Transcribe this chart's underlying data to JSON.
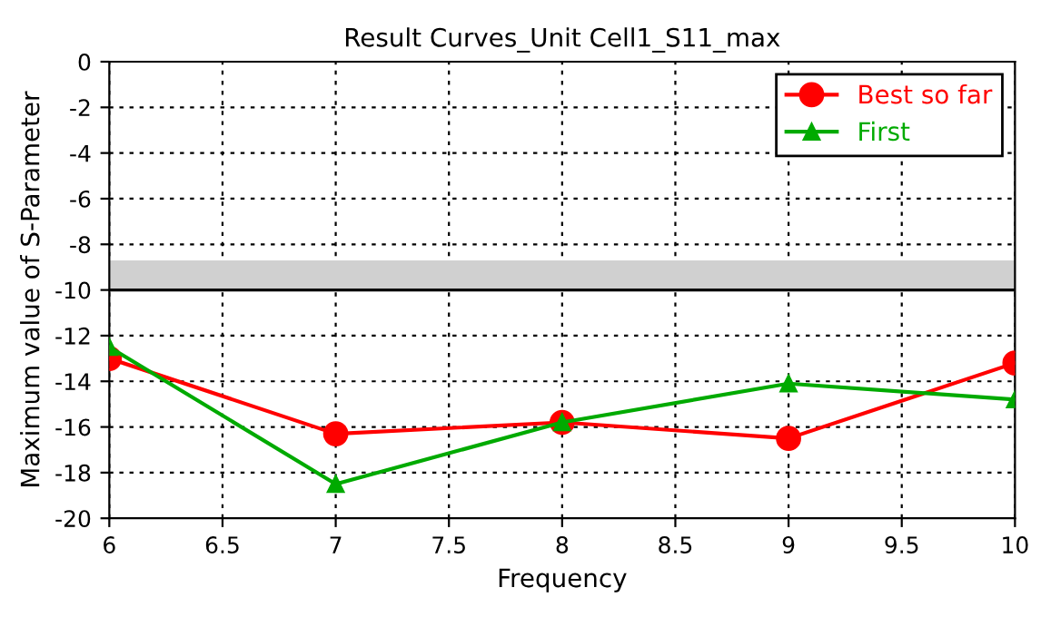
{
  "chart_data": {
    "type": "line",
    "title": "Result Curves_Unit Cell1_S11_max",
    "xlabel": "Frequency",
    "ylabel": "Maximum value of S-Parameter",
    "x": [
      6,
      7,
      8,
      9,
      10
    ],
    "series": [
      {
        "name": "Best so far",
        "color": "#ff0000",
        "marker": "circle",
        "values": [
          -13.0,
          -16.3,
          -15.8,
          -16.5,
          -13.2
        ]
      },
      {
        "name": "First",
        "color": "#00aa00",
        "marker": "triangle",
        "values": [
          -12.5,
          -18.5,
          -15.8,
          -14.1,
          -14.8
        ]
      }
    ],
    "xlim": [
      6,
      10
    ],
    "xticks": [
      6,
      6.5,
      7,
      7.5,
      8,
      8.5,
      9,
      9.5,
      10
    ],
    "ylim": [
      -20,
      0
    ],
    "yticks": [
      -20,
      -18,
      -16,
      -14,
      -12,
      -10,
      -8,
      -6,
      -4,
      -2,
      0
    ],
    "bands": [
      {
        "axis": "y",
        "from": -10,
        "to": -8.7,
        "color": "#d0d0d0"
      }
    ],
    "ref_lines": [
      {
        "axis": "y",
        "value": -10,
        "color": "#000000",
        "line_style": "solid"
      }
    ],
    "grid": true,
    "legend": "top right",
    "line_style": "solid"
  }
}
